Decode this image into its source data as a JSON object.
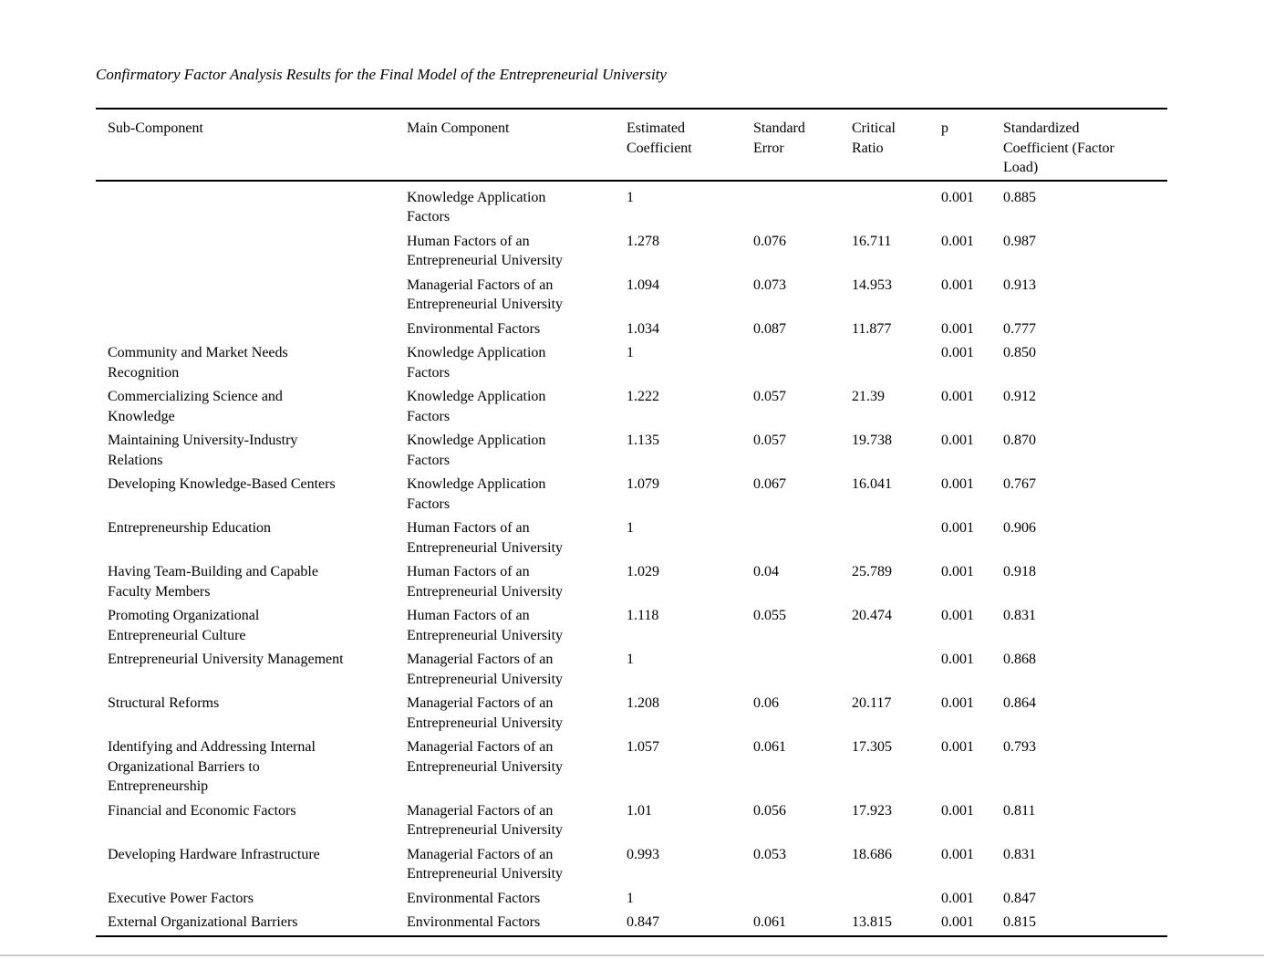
{
  "title": "Confirmatory Factor Analysis Results for the Final Model of the Entrepreneurial University",
  "table": {
    "columns": [
      "Sub-Component",
      "Main Component",
      "Estimated\nCoefficient",
      "Standard\nError",
      "Critical\nRatio",
      "p",
      "Standardized\nCoefficient (Factor\nLoad)"
    ],
    "rows": [
      {
        "sub": "",
        "main": "Knowledge Application\nFactors",
        "est": "1",
        "se": "",
        "cr": "",
        "p": "0.001",
        "std": "0.885"
      },
      {
        "sub": "",
        "main": "Human Factors of an\nEntrepreneurial University",
        "est": "1.278",
        "se": "0.076",
        "cr": "16.711",
        "p": "0.001",
        "std": "0.987"
      },
      {
        "sub": "",
        "main": "Managerial Factors of an\nEntrepreneurial University",
        "est": "1.094",
        "se": "0.073",
        "cr": "14.953",
        "p": "0.001",
        "std": "0.913"
      },
      {
        "sub": "",
        "main": "Environmental Factors",
        "est": "1.034",
        "se": "0.087",
        "cr": "11.877",
        "p": "0.001",
        "std": "0.777"
      },
      {
        "sub": "Community and Market Needs\nRecognition",
        "main": "Knowledge Application\nFactors",
        "est": "1",
        "se": "",
        "cr": "",
        "p": "0.001",
        "std": "0.850"
      },
      {
        "sub": "Commercializing Science and\nKnowledge",
        "main": "Knowledge Application\nFactors",
        "est": "1.222",
        "se": "0.057",
        "cr": "21.39",
        "p": "0.001",
        "std": "0.912"
      },
      {
        "sub": "Maintaining University-Industry\nRelations",
        "main": "Knowledge Application\nFactors",
        "est": "1.135",
        "se": "0.057",
        "cr": "19.738",
        "p": "0.001",
        "std": "0.870"
      },
      {
        "sub": "Developing Knowledge-Based Centers",
        "main": "Knowledge Application\nFactors",
        "est": "1.079",
        "se": "0.067",
        "cr": "16.041",
        "p": "0.001",
        "std": "0.767"
      },
      {
        "sub": "Entrepreneurship Education",
        "main": "Human Factors of an\nEntrepreneurial University",
        "est": "1",
        "se": "",
        "cr": "",
        "p": "0.001",
        "std": "0.906"
      },
      {
        "sub": "Having Team-Building and Capable\nFaculty Members",
        "main": "Human Factors of an\nEntrepreneurial University",
        "est": "1.029",
        "se": "0.04",
        "cr": "25.789",
        "p": "0.001",
        "std": "0.918"
      },
      {
        "sub": "Promoting Organizational\nEntrepreneurial Culture",
        "main": "Human Factors of an\nEntrepreneurial University",
        "est": "1.118",
        "se": "0.055",
        "cr": "20.474",
        "p": "0.001",
        "std": "0.831"
      },
      {
        "sub": "Entrepreneurial University Management",
        "main": "Managerial Factors of an\nEntrepreneurial University",
        "est": "1",
        "se": "",
        "cr": "",
        "p": "0.001",
        "std": "0.868"
      },
      {
        "sub": "Structural Reforms",
        "main": "Managerial Factors of an\nEntrepreneurial University",
        "est": "1.208",
        "se": "0.06",
        "cr": "20.117",
        "p": "0.001",
        "std": "0.864"
      },
      {
        "sub": "Identifying and Addressing Internal\nOrganizational Barriers to\nEntrepreneurship",
        "main": "Managerial Factors of an\nEntrepreneurial University",
        "est": "1.057",
        "se": "0.061",
        "cr": "17.305",
        "p": "0.001",
        "std": "0.793"
      },
      {
        "sub": "Financial and Economic Factors",
        "main": "Managerial Factors of an\nEntrepreneurial University",
        "est": "1.01",
        "se": "0.056",
        "cr": "17.923",
        "p": "0.001",
        "std": "0.811"
      },
      {
        "sub": "Developing Hardware Infrastructure",
        "main": "Managerial Factors of an\nEntrepreneurial University",
        "est": "0.993",
        "se": "0.053",
        "cr": "18.686",
        "p": "0.001",
        "std": "0.831"
      },
      {
        "sub": "Executive Power Factors",
        "main": "Environmental Factors",
        "est": "1",
        "se": "",
        "cr": "",
        "p": "0.001",
        "std": "0.847"
      },
      {
        "sub": "External Organizational Barriers",
        "main": "Environmental Factors",
        "est": "0.847",
        "se": "0.061",
        "cr": "13.815",
        "p": "0.001",
        "std": "0.815"
      }
    ]
  }
}
